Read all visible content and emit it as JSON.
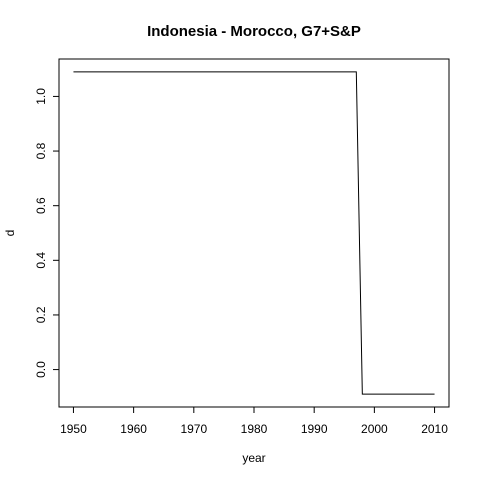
{
  "chart_data": {
    "type": "line",
    "title": "Indonesia - Morocco, G7+S&P",
    "xlabel": "year",
    "ylabel": "d",
    "xlim": [
      1947.6,
      2012.4
    ],
    "ylim": [
      -0.137,
      1.137
    ],
    "x_ticks": [
      1950,
      1960,
      1970,
      1980,
      1990,
      2000,
      2010
    ],
    "y_ticks": [
      0.0,
      0.2,
      0.4,
      0.6,
      0.8,
      1.0
    ],
    "y_tick_labels": [
      "0.0",
      "0.2",
      "0.4",
      "0.6",
      "0.8",
      "1.0"
    ],
    "grid": false,
    "legend": "none",
    "series": [
      {
        "x": [
          1950,
          1997,
          1998,
          2010
        ],
        "y": [
          1.09,
          1.09,
          -0.09,
          -0.09
        ]
      }
    ]
  }
}
